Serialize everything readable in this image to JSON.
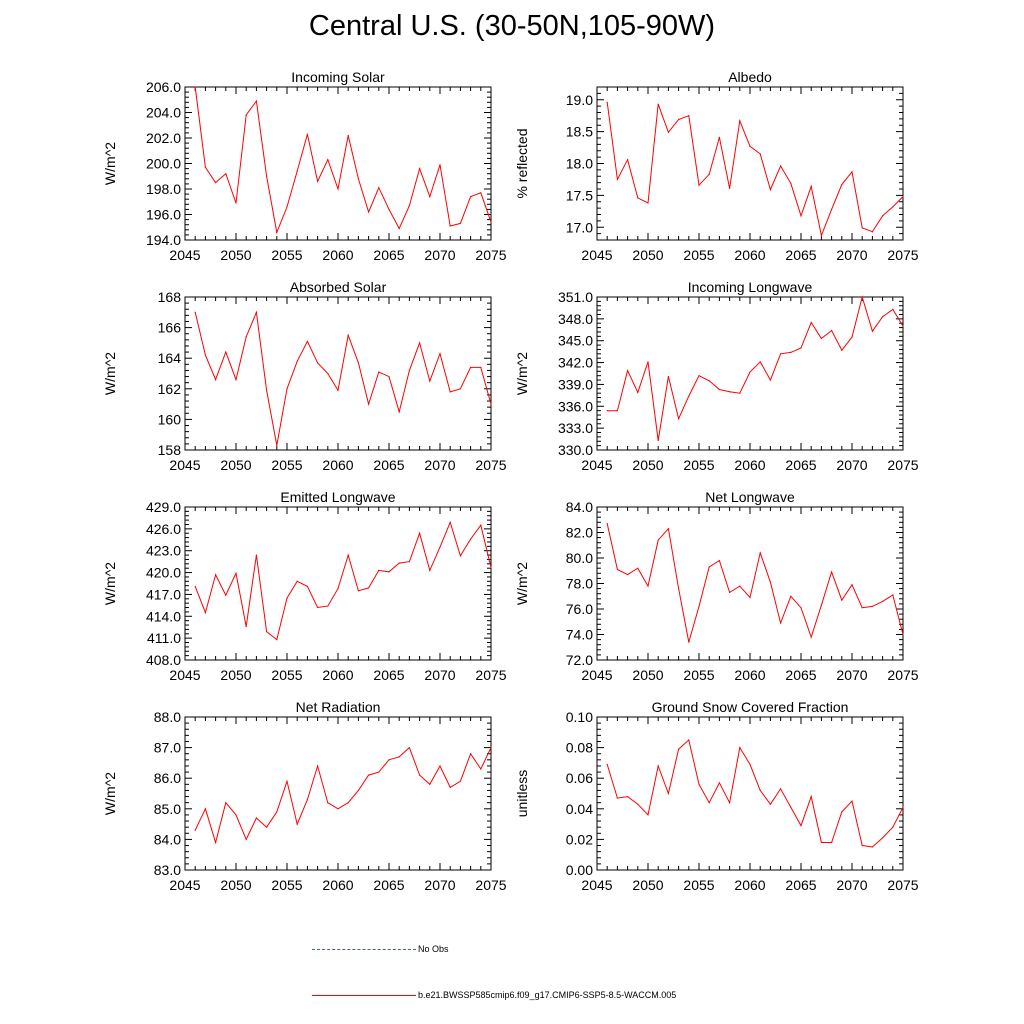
{
  "figure": {
    "title": "Central U.S. (30-50N,105-90W)",
    "line_color": "#ff0000",
    "obs_color": "#3b5bd6"
  },
  "legend": {
    "obs_label": "No Obs",
    "model_label": "b.e21.BWSSP585cmip6.f09_g17.CMIP6-SSP5-8.5-WACCM.005"
  },
  "chart_data": [
    {
      "type": "line",
      "title": "Incoming Solar",
      "ylabel": "W/m^2",
      "xlim": [
        2045,
        2075
      ],
      "ylim": [
        194,
        206
      ],
      "yticks": [
        "194.0",
        "196.0",
        "198.0",
        "200.0",
        "202.0",
        "204.0",
        "206.0"
      ],
      "xticks": [
        "2045",
        "2050",
        "2055",
        "2060",
        "2065",
        "2070",
        "2075"
      ],
      "x": [
        2046,
        2047,
        2048,
        2049,
        2050,
        2051,
        2052,
        2053,
        2054,
        2055,
        2056,
        2057,
        2058,
        2059,
        2060,
        2061,
        2062,
        2063,
        2064,
        2065,
        2066,
        2067,
        2068,
        2069,
        2070,
        2071,
        2072,
        2073,
        2074,
        2075
      ],
      "values": [
        206.0,
        199.7,
        198.5,
        199.2,
        196.9,
        203.8,
        204.9,
        199.0,
        194.6,
        196.6,
        199.4,
        202.3,
        198.6,
        200.3,
        198.0,
        202.2,
        198.8,
        196.2,
        198.1,
        196.4,
        194.9,
        196.7,
        199.6,
        197.4,
        199.9,
        195.1,
        195.3,
        197.4,
        197.7,
        195.4
      ],
      "series": [
        {
          "name": "b.e21.BWSSP585cmip6.f09_g17.CMIP6-SSP5-8.5-WACCM.005"
        }
      ]
    },
    {
      "type": "line",
      "title": "Albedo",
      "ylabel": "% reflected",
      "xlim": [
        2045,
        2075
      ],
      "ylim": [
        16.8,
        19.2
      ],
      "yticks": [
        "17.0",
        "17.5",
        "18.0",
        "18.5",
        "19.0"
      ],
      "xticks": [
        "2045",
        "2050",
        "2055",
        "2060",
        "2065",
        "2070",
        "2075"
      ],
      "x": [
        2046,
        2047,
        2048,
        2049,
        2050,
        2051,
        2052,
        2053,
        2054,
        2055,
        2056,
        2057,
        2058,
        2059,
        2060,
        2061,
        2062,
        2063,
        2064,
        2065,
        2066,
        2067,
        2068,
        2069,
        2070,
        2071,
        2072,
        2073,
        2074,
        2075
      ],
      "values": [
        18.96,
        17.75,
        18.06,
        17.46,
        17.38,
        18.93,
        18.49,
        18.69,
        18.75,
        17.66,
        17.83,
        18.41,
        17.61,
        18.67,
        18.27,
        18.15,
        17.59,
        17.96,
        17.69,
        17.18,
        17.64,
        16.87,
        17.28,
        17.67,
        17.87,
        16.99,
        16.93,
        17.18,
        17.32,
        17.48
      ],
      "series": [
        {
          "name": "b.e21.BWSSP585cmip6.f09_g17.CMIP6-SSP5-8.5-WACCM.005"
        }
      ]
    },
    {
      "type": "line",
      "title": "Absorbed Solar",
      "ylabel": "W/m^2",
      "xlim": [
        2045,
        2075
      ],
      "ylim": [
        158,
        168
      ],
      "yticks": [
        "158",
        "160",
        "162",
        "164",
        "166",
        "168"
      ],
      "xticks": [
        "2045",
        "2050",
        "2055",
        "2060",
        "2065",
        "2070",
        "2075"
      ],
      "x": [
        2046,
        2047,
        2048,
        2049,
        2050,
        2051,
        2052,
        2053,
        2054,
        2055,
        2056,
        2057,
        2058,
        2059,
        2060,
        2061,
        2062,
        2063,
        2064,
        2065,
        2066,
        2067,
        2068,
        2069,
        2070,
        2071,
        2072,
        2073,
        2074,
        2075
      ],
      "values": [
        167.0,
        164.2,
        162.6,
        164.4,
        162.6,
        165.4,
        167.0,
        161.9,
        158.3,
        162.0,
        163.8,
        165.1,
        163.7,
        163.0,
        161.9,
        165.5,
        163.7,
        161.0,
        163.1,
        162.8,
        160.5,
        163.2,
        165.0,
        162.5,
        164.3,
        161.8,
        162.0,
        163.4,
        163.4,
        161.0
      ],
      "series": [
        {
          "name": "b.e21.BWSSP585cmip6.f09_g17.CMIP6-SSP5-8.5-WACCM.005"
        }
      ]
    },
    {
      "type": "line",
      "title": "Incoming Longwave",
      "ylabel": "W/m^2",
      "xlim": [
        2045,
        2075
      ],
      "ylim": [
        330,
        351
      ],
      "yticks": [
        "330.0",
        "333.0",
        "336.0",
        "339.0",
        "342.0",
        "345.0",
        "348.0",
        "351.0"
      ],
      "xticks": [
        "2045",
        "2050",
        "2055",
        "2060",
        "2065",
        "2070",
        "2075"
      ],
      "x": [
        2046,
        2047,
        2048,
        2049,
        2050,
        2051,
        2052,
        2053,
        2054,
        2055,
        2056,
        2057,
        2058,
        2059,
        2060,
        2061,
        2062,
        2063,
        2064,
        2065,
        2066,
        2067,
        2068,
        2069,
        2070,
        2071,
        2072,
        2073,
        2074,
        2075
      ],
      "values": [
        335.4,
        335.4,
        340.9,
        337.9,
        342.1,
        331.3,
        340.1,
        334.3,
        337.4,
        340.2,
        339.5,
        338.3,
        338.0,
        337.8,
        340.7,
        342.1,
        339.6,
        343.2,
        343.4,
        344.0,
        347.5,
        345.3,
        346.4,
        343.7,
        345.5,
        351.0,
        346.3,
        348.3,
        349.3,
        347.0
      ],
      "series": [
        {
          "name": "b.e21.BWSSP585cmip6.f09_g17.CMIP6-SSP5-8.5-WACCM.005"
        }
      ]
    },
    {
      "type": "line",
      "title": "Emitted Longwave",
      "ylabel": "W/m^2",
      "xlim": [
        2045,
        2075
      ],
      "ylim": [
        408,
        429
      ],
      "yticks": [
        "408.0",
        "411.0",
        "414.0",
        "417.0",
        "420.0",
        "423.0",
        "426.0",
        "429.0"
      ],
      "xticks": [
        "2045",
        "2050",
        "2055",
        "2060",
        "2065",
        "2070",
        "2075"
      ],
      "x": [
        2046,
        2047,
        2048,
        2049,
        2050,
        2051,
        2052,
        2053,
        2054,
        2055,
        2056,
        2057,
        2058,
        2059,
        2060,
        2061,
        2062,
        2063,
        2064,
        2065,
        2066,
        2067,
        2068,
        2069,
        2070,
        2071,
        2072,
        2073,
        2074,
        2075
      ],
      "values": [
        418.1,
        414.5,
        419.7,
        416.9,
        419.9,
        412.6,
        422.4,
        411.9,
        410.8,
        416.5,
        418.8,
        418.1,
        415.2,
        415.4,
        417.8,
        422.4,
        417.5,
        417.9,
        420.3,
        420.1,
        421.3,
        421.5,
        425.4,
        420.3,
        423.5,
        426.9,
        422.3,
        424.6,
        426.5,
        420.7
      ],
      "series": [
        {
          "name": "b.e21.BWSSP585cmip6.f09_g17.CMIP6-SSP5-8.5-WACCM.005"
        }
      ]
    },
    {
      "type": "line",
      "title": "Net Longwave",
      "ylabel": "W/m^2",
      "xlim": [
        2045,
        2075
      ],
      "ylim": [
        72,
        84
      ],
      "yticks": [
        "72.0",
        "74.0",
        "76.0",
        "78.0",
        "80.0",
        "82.0",
        "84.0"
      ],
      "xticks": [
        "2045",
        "2050",
        "2055",
        "2060",
        "2065",
        "2070",
        "2075"
      ],
      "x": [
        2046,
        2047,
        2048,
        2049,
        2050,
        2051,
        2052,
        2053,
        2054,
        2055,
        2056,
        2057,
        2058,
        2059,
        2060,
        2061,
        2062,
        2063,
        2064,
        2065,
        2066,
        2067,
        2068,
        2069,
        2070,
        2071,
        2072,
        2073,
        2074,
        2075
      ],
      "values": [
        82.7,
        79.1,
        78.7,
        79.2,
        77.8,
        81.4,
        82.3,
        77.6,
        73.4,
        76.2,
        79.3,
        79.8,
        77.3,
        77.8,
        76.9,
        80.4,
        78.1,
        74.9,
        77.0,
        76.1,
        73.8,
        76.3,
        78.9,
        76.7,
        77.9,
        76.1,
        76.2,
        76.6,
        77.1,
        74.0
      ],
      "series": [
        {
          "name": "b.e21.BWSSP585cmip6.f09_g17.CMIP6-SSP5-8.5-WACCM.005"
        }
      ]
    },
    {
      "type": "line",
      "title": "Net Radiation",
      "ylabel": "W/m^2",
      "xlim": [
        2045,
        2075
      ],
      "ylim": [
        83,
        88
      ],
      "yticks": [
        "83.0",
        "84.0",
        "85.0",
        "86.0",
        "87.0",
        "88.0"
      ],
      "xticks": [
        "2045",
        "2050",
        "2055",
        "2060",
        "2065",
        "2070",
        "2075"
      ],
      "x": [
        2046,
        2047,
        2048,
        2049,
        2050,
        2051,
        2052,
        2053,
        2054,
        2055,
        2056,
        2057,
        2058,
        2059,
        2060,
        2061,
        2062,
        2063,
        2064,
        2065,
        2066,
        2067,
        2068,
        2069,
        2070,
        2071,
        2072,
        2073,
        2074,
        2075
      ],
      "values": [
        84.3,
        85.0,
        83.9,
        85.2,
        84.8,
        84.0,
        84.7,
        84.4,
        84.9,
        85.9,
        84.5,
        85.3,
        86.4,
        85.2,
        85.0,
        85.2,
        85.6,
        86.1,
        86.2,
        86.6,
        86.7,
        87.0,
        86.1,
        85.8,
        86.4,
        85.7,
        85.9,
        86.8,
        86.3,
        87.0
      ],
      "series": [
        {
          "name": "b.e21.BWSSP585cmip6.f09_g17.CMIP6-SSP5-8.5-WACCM.005"
        }
      ]
    },
    {
      "type": "line",
      "title": "Ground Snow Covered Fraction",
      "ylabel": "unitless",
      "xlim": [
        2045,
        2075
      ],
      "ylim": [
        0.0,
        0.1
      ],
      "yticks": [
        "0.00",
        "0.02",
        "0.04",
        "0.06",
        "0.08",
        "0.10"
      ],
      "xticks": [
        "2045",
        "2050",
        "2055",
        "2060",
        "2065",
        "2070",
        "2075"
      ],
      "x": [
        2046,
        2047,
        2048,
        2049,
        2050,
        2051,
        2052,
        2053,
        2054,
        2055,
        2056,
        2057,
        2058,
        2059,
        2060,
        2061,
        2062,
        2063,
        2064,
        2065,
        2066,
        2067,
        2068,
        2069,
        2070,
        2071,
        2072,
        2073,
        2074,
        2075
      ],
      "values": [
        0.069,
        0.047,
        0.048,
        0.043,
        0.036,
        0.068,
        0.05,
        0.079,
        0.085,
        0.056,
        0.044,
        0.057,
        0.044,
        0.08,
        0.069,
        0.052,
        0.043,
        0.053,
        0.041,
        0.029,
        0.048,
        0.018,
        0.018,
        0.038,
        0.045,
        0.016,
        0.015,
        0.021,
        0.028,
        0.041
      ],
      "series": [
        {
          "name": "b.e21.BWSSP585cmip6.f09_g17.CMIP6-SSP5-8.5-WACCM.005"
        }
      ]
    }
  ]
}
